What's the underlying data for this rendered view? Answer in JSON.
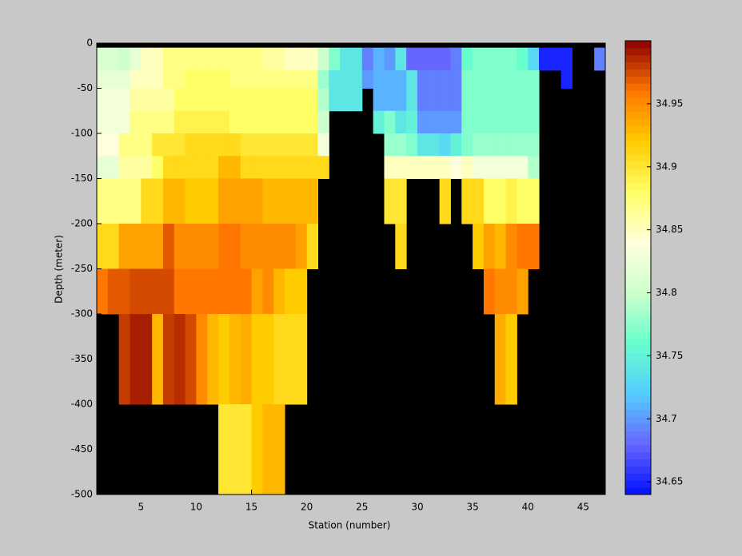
{
  "chart_data": {
    "type": "heatmap",
    "xlabel": "Station (number)",
    "ylabel": "Depth (meter)",
    "x_edges": [
      1,
      2,
      3,
      4,
      5,
      6,
      7,
      8,
      9,
      10,
      11,
      12,
      13,
      14,
      15,
      16,
      17,
      18,
      19,
      20,
      21,
      22,
      23,
      24,
      25,
      26,
      27,
      28,
      29,
      30,
      31,
      32,
      33,
      34,
      35,
      36,
      37,
      38,
      39,
      40,
      41,
      42,
      43,
      44,
      45,
      46,
      47
    ],
    "y_edges": [
      -5,
      -30,
      -50,
      -75,
      -100,
      -125,
      -150,
      -200,
      -250,
      -300,
      -400,
      -500
    ],
    "values": [
      [
        34.81,
        34.81,
        34.8,
        34.82,
        34.85,
        34.85,
        34.87,
        34.87,
        34.87,
        34.87,
        34.87,
        34.87,
        34.87,
        34.87,
        34.87,
        34.86,
        34.86,
        34.85,
        34.85,
        34.85,
        34.8,
        34.77,
        34.74,
        34.74,
        34.69,
        34.71,
        34.7,
        34.74,
        34.68,
        34.68,
        34.68,
        34.68,
        34.69,
        34.76,
        34.77,
        34.77,
        34.77,
        34.77,
        34.76,
        34.73,
        34.65,
        34.65,
        34.65,
        null,
        null,
        34.69
      ],
      [
        34.82,
        34.82,
        34.82,
        34.85,
        34.85,
        34.85,
        34.87,
        34.87,
        34.88,
        34.88,
        34.88,
        34.88,
        34.87,
        34.87,
        34.87,
        34.87,
        34.87,
        34.87,
        34.87,
        34.87,
        34.78,
        34.74,
        34.74,
        34.74,
        34.7,
        34.71,
        34.71,
        34.71,
        34.74,
        34.69,
        34.69,
        34.69,
        34.69,
        34.77,
        34.77,
        34.77,
        34.77,
        34.77,
        34.77,
        34.77,
        null,
        null,
        34.65,
        null,
        null,
        null
      ],
      [
        34.83,
        34.83,
        34.83,
        34.86,
        34.86,
        34.86,
        34.86,
        34.88,
        34.88,
        34.88,
        34.88,
        34.88,
        34.88,
        34.88,
        34.88,
        34.88,
        34.88,
        34.88,
        34.88,
        34.88,
        34.79,
        34.74,
        34.74,
        34.74,
        null,
        34.71,
        34.71,
        34.71,
        34.74,
        34.69,
        34.69,
        34.69,
        34.69,
        34.77,
        34.77,
        34.77,
        34.77,
        34.77,
        34.77,
        34.77,
        null,
        null,
        null,
        null,
        null,
        null
      ],
      [
        34.83,
        34.83,
        34.83,
        34.87,
        34.87,
        34.87,
        34.87,
        34.89,
        34.89,
        34.89,
        34.89,
        34.89,
        34.88,
        34.88,
        34.88,
        34.88,
        34.88,
        34.88,
        34.88,
        34.88,
        34.8,
        null,
        null,
        null,
        null,
        34.75,
        34.77,
        34.74,
        34.75,
        34.7,
        34.7,
        34.7,
        34.7,
        34.77,
        34.77,
        34.77,
        34.77,
        34.77,
        34.77,
        34.77,
        null,
        null,
        null,
        null,
        null,
        null
      ],
      [
        34.84,
        34.84,
        34.87,
        34.87,
        34.87,
        34.9,
        34.9,
        34.9,
        34.91,
        34.91,
        34.91,
        34.91,
        34.91,
        34.9,
        34.9,
        34.9,
        34.9,
        34.9,
        34.9,
        34.9,
        34.83,
        null,
        null,
        null,
        null,
        null,
        34.78,
        34.78,
        34.77,
        34.74,
        34.74,
        34.73,
        34.75,
        34.77,
        34.78,
        34.78,
        34.78,
        34.78,
        34.78,
        34.78,
        null,
        null,
        null,
        null,
        null,
        null
      ],
      [
        34.82,
        34.82,
        34.86,
        34.86,
        34.86,
        34.88,
        34.91,
        34.91,
        34.91,
        34.91,
        34.91,
        34.93,
        34.93,
        34.91,
        34.91,
        34.91,
        34.91,
        34.91,
        34.91,
        34.91,
        34.91,
        null,
        null,
        null,
        null,
        null,
        34.85,
        34.85,
        34.85,
        34.85,
        34.85,
        34.85,
        34.84,
        34.85,
        34.83,
        34.83,
        34.83,
        34.83,
        34.83,
        34.79,
        null,
        null,
        null,
        null,
        null,
        null
      ],
      [
        34.87,
        34.87,
        34.87,
        34.87,
        34.91,
        34.91,
        34.93,
        34.93,
        34.92,
        34.92,
        34.92,
        34.94,
        34.94,
        34.94,
        34.94,
        34.93,
        34.93,
        34.93,
        34.93,
        34.93,
        null,
        null,
        null,
        null,
        null,
        null,
        34.9,
        34.9,
        null,
        null,
        null,
        34.91,
        null,
        34.91,
        34.91,
        34.88,
        34.88,
        34.89,
        34.88,
        34.88,
        null,
        null,
        null,
        null,
        null,
        null
      ],
      [
        34.91,
        34.91,
        34.94,
        34.94,
        34.94,
        34.94,
        34.97,
        34.95,
        34.95,
        34.95,
        34.95,
        34.96,
        34.96,
        34.95,
        34.95,
        34.95,
        34.95,
        34.95,
        34.94,
        34.91,
        null,
        null,
        null,
        null,
        null,
        null,
        null,
        34.91,
        null,
        null,
        null,
        null,
        null,
        null,
        34.92,
        34.94,
        34.93,
        34.95,
        34.96,
        34.96,
        null,
        null,
        null,
        null,
        null,
        null
      ],
      [
        34.96,
        34.97,
        34.97,
        34.975,
        34.975,
        34.975,
        34.975,
        34.96,
        34.96,
        34.96,
        34.96,
        34.96,
        34.96,
        34.96,
        34.94,
        34.95,
        34.93,
        34.92,
        34.92,
        null,
        null,
        null,
        null,
        null,
        null,
        null,
        null,
        null,
        null,
        null,
        null,
        null,
        null,
        null,
        null,
        34.96,
        34.95,
        34.95,
        34.94,
        null,
        null,
        null,
        null,
        null,
        null,
        null
      ],
      [
        null,
        null,
        34.98,
        34.99,
        34.99,
        34.93,
        34.98,
        34.985,
        34.975,
        34.95,
        34.93,
        34.92,
        34.93,
        34.935,
        34.92,
        34.92,
        34.91,
        34.91,
        34.91,
        null,
        null,
        null,
        null,
        null,
        null,
        null,
        null,
        null,
        null,
        null,
        null,
        null,
        null,
        null,
        null,
        null,
        34.935,
        34.92,
        null,
        null,
        null,
        null,
        null,
        null,
        null,
        null
      ],
      [
        null,
        null,
        null,
        null,
        null,
        null,
        null,
        null,
        null,
        null,
        null,
        34.9,
        34.9,
        34.9,
        34.92,
        34.93,
        34.93,
        null,
        null,
        null,
        null,
        null,
        null,
        null,
        null,
        null,
        null,
        null,
        null,
        null,
        null,
        null,
        null,
        null,
        null,
        null,
        null,
        null,
        null,
        null,
        null,
        null,
        null,
        null,
        null,
        null
      ]
    ],
    "xlim": [
      1,
      47
    ],
    "xticks": [
      5,
      10,
      15,
      20,
      25,
      30,
      35,
      40,
      45
    ],
    "ylim": [
      -500,
      0
    ],
    "yticks": [
      0,
      -50,
      -100,
      -150,
      -200,
      -250,
      -300,
      -350,
      -400,
      -450,
      -500
    ],
    "background_color": "#000000",
    "colorbar": {
      "lim": [
        34.64,
        35.0
      ],
      "ticks": [
        34.65,
        34.7,
        34.75,
        34.8,
        34.85,
        34.9,
        34.95
      ],
      "colormap": [
        "#0010ff",
        "#6666ff",
        "#55ccff",
        "#66ffcc",
        "#ccffcc",
        "#ffffdd",
        "#ffff66",
        "#ffcc00",
        "#ff7700",
        "#8b0000"
      ]
    }
  }
}
